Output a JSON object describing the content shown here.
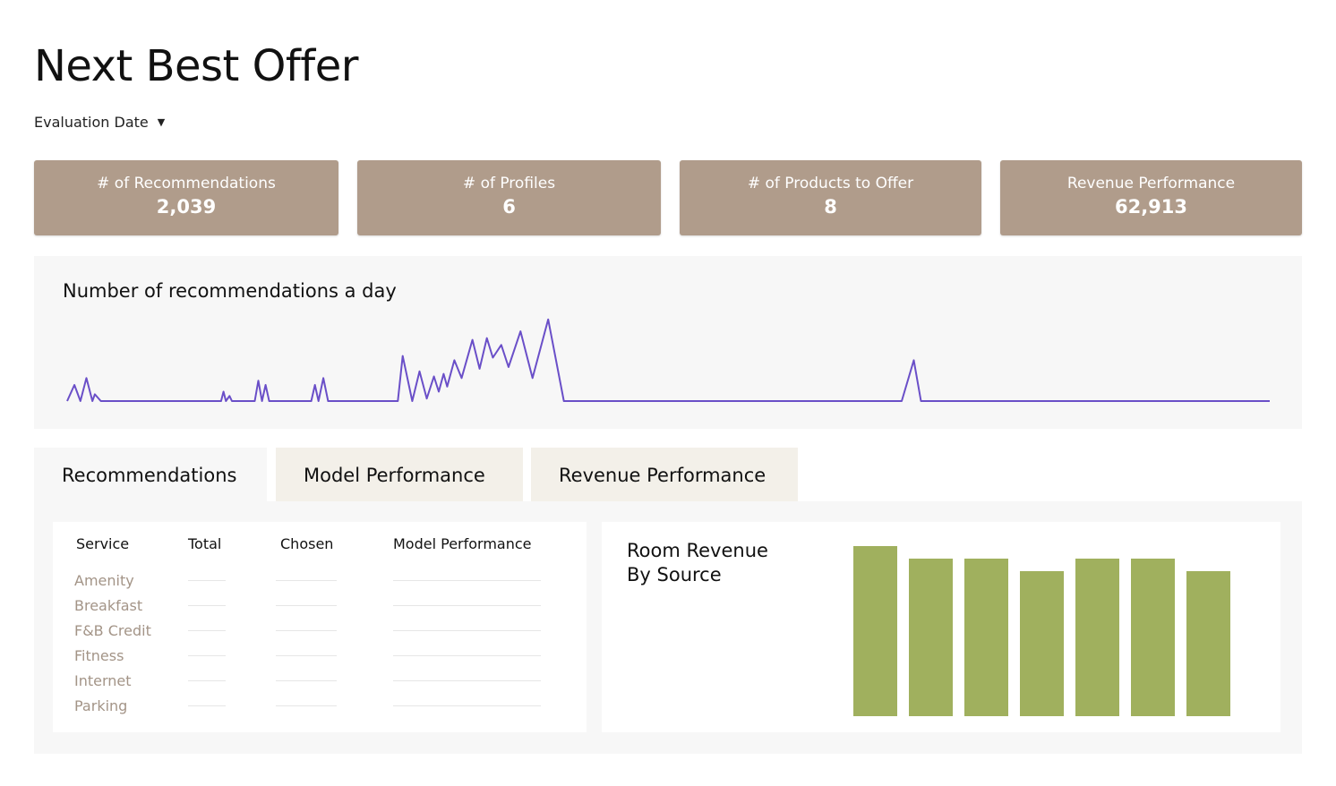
{
  "header": {
    "title": "Next Best Offer",
    "filter": "Evaluation Date"
  },
  "kpis": [
    {
      "label": "# of Recommendations",
      "value": "2,039"
    },
    {
      "label": "# of Profiles",
      "value": "6"
    },
    {
      "label": "# of Products to Offer",
      "value": "8"
    },
    {
      "label": "Revenue Performance",
      "value": "62,913"
    }
  ],
  "tabs": [
    "Recommendations",
    "Model Performance",
    "Revenue Performance"
  ],
  "table": {
    "columns": [
      "Service",
      "Total",
      "Chosen",
      "Model Performance"
    ],
    "services": [
      "Amenity",
      "Breakfast",
      "F&B Credit",
      "Fitness",
      "Internet",
      "Parking"
    ]
  },
  "chart_data": [
    {
      "type": "line",
      "title": "Number of recommendations a day",
      "color": "#6a4fc8",
      "x": [
        0,
        0.6,
        1.1,
        1.6,
        2.1,
        2.3,
        2.8,
        12.8,
        13.0,
        13.2,
        13.5,
        13.7,
        15.6,
        15.9,
        16.2,
        16.5,
        16.8,
        20.3,
        20.6,
        20.9,
        21.3,
        21.7,
        27.5,
        27.9,
        28.7,
        29.3,
        29.9,
        30.5,
        30.9,
        31.3,
        31.6,
        32.2,
        32.8,
        33.7,
        34.3,
        34.9,
        35.4,
        36.1,
        36.7,
        37.7,
        38.7,
        40.0,
        41.3,
        69.4,
        70.4,
        71.0,
        100
      ],
      "values": [
        0,
        19,
        0,
        27,
        0,
        8,
        0,
        0,
        11,
        0,
        6,
        0,
        0,
        24,
        0,
        19,
        0,
        0,
        19,
        0,
        27,
        0,
        0,
        53,
        0,
        35,
        3,
        29,
        11,
        32,
        17,
        48,
        27,
        72,
        38,
        74,
        51,
        66,
        40,
        82,
        27,
        96,
        0,
        0,
        48,
        0,
        0
      ],
      "xlim": [
        0,
        100
      ],
      "ylim": [
        0,
        100
      ]
    },
    {
      "type": "bar",
      "title": "Room Revenue By Source",
      "color": "#a0b05e",
      "categories": [
        null,
        null,
        null,
        null,
        null,
        null,
        null
      ],
      "values": [
        95,
        88,
        88,
        81,
        88,
        88,
        81
      ],
      "ylim": [
        0,
        100
      ]
    }
  ]
}
